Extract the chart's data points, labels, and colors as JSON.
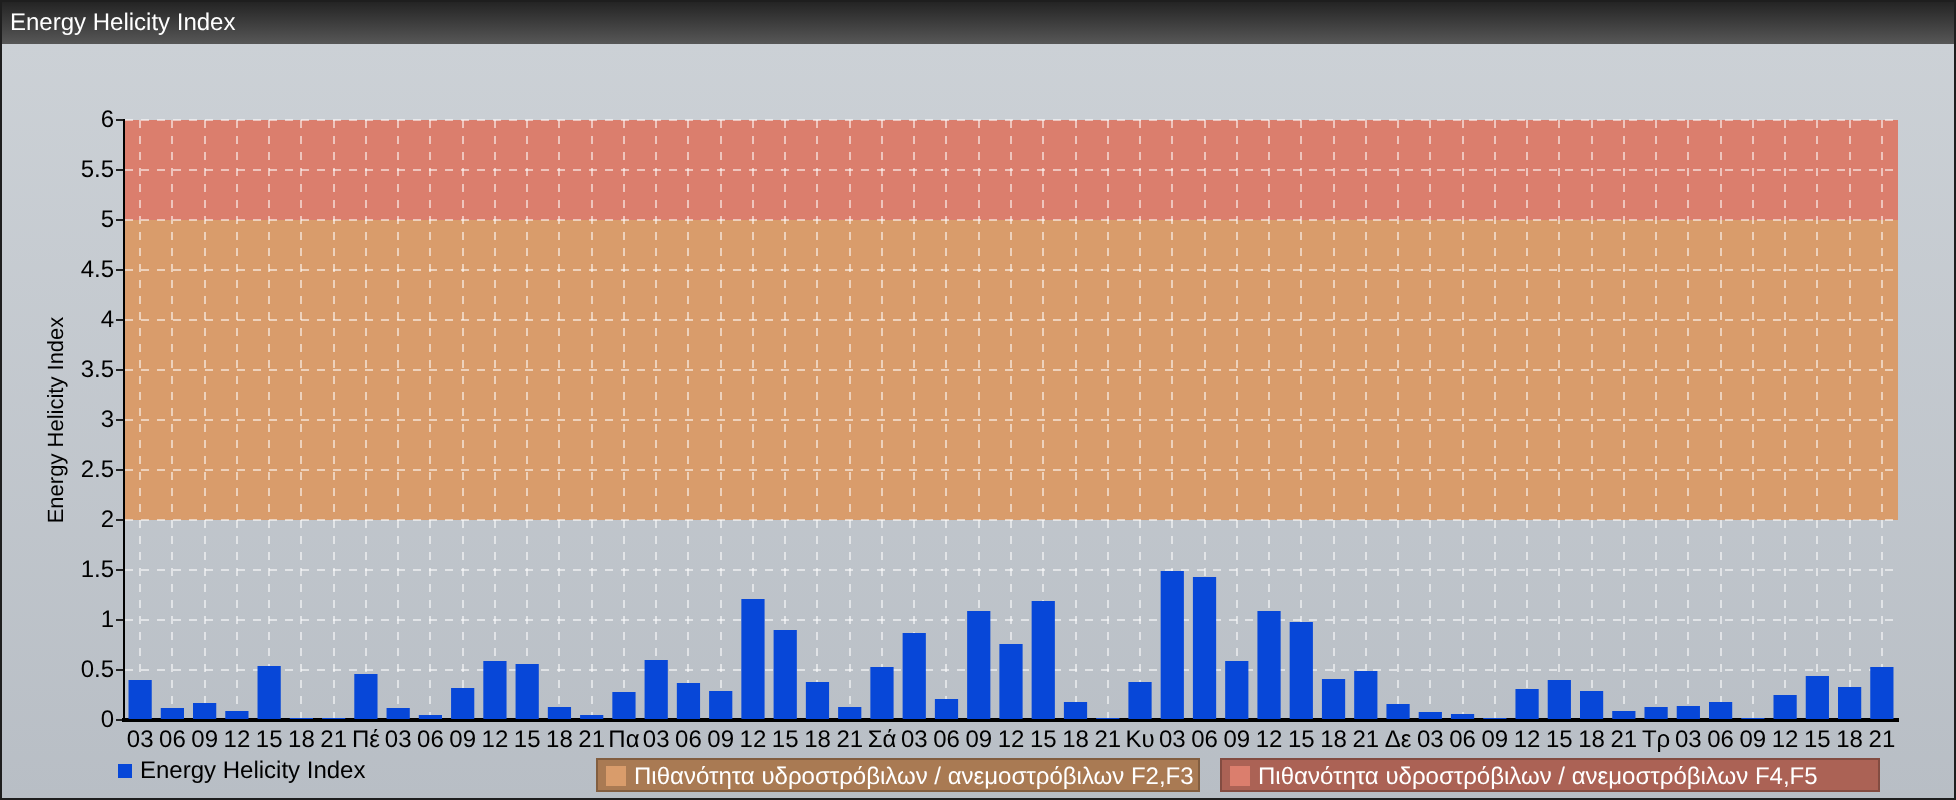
{
  "chart_data": {
    "type": "bar",
    "title": "Energy Helicity Index",
    "ylabel": "Energy Helicity Index",
    "categories": [
      "03",
      "06",
      "09",
      "12",
      "15",
      "18",
      "21",
      "Πέ",
      "03",
      "06",
      "09",
      "12",
      "15",
      "18",
      "21",
      "Πα",
      "03",
      "06",
      "09",
      "12",
      "15",
      "18",
      "21",
      "Σά",
      "03",
      "06",
      "09",
      "12",
      "15",
      "18",
      "21",
      "Κυ",
      "03",
      "06",
      "09",
      "12",
      "15",
      "18",
      "21",
      "Δε",
      "03",
      "06",
      "09",
      "12",
      "15",
      "18",
      "21",
      "Τρ",
      "03",
      "06",
      "09",
      "12",
      "15",
      "18",
      "21"
    ],
    "series": [
      {
        "name": "Energy Helicity Index",
        "color": "#0747d8",
        "values": [
          0.4,
          0.12,
          0.17,
          0.09,
          0.54,
          0.02,
          0.02,
          0.46,
          0.12,
          0.05,
          0.32,
          0.59,
          0.56,
          0.13,
          0.05,
          0.28,
          0.6,
          0.37,
          0.29,
          1.21,
          0.9,
          0.38,
          0.13,
          0.53,
          0.87,
          0.21,
          1.09,
          0.76,
          1.19,
          0.18,
          0.02,
          0.38,
          1.49,
          1.43,
          0.59,
          1.09,
          0.98,
          0.41,
          0.49,
          0.16,
          0.08,
          0.06,
          0.02,
          0.31,
          0.4,
          0.29,
          0.09,
          0.13,
          0.14,
          0.18,
          0.02,
          0.25,
          0.44,
          0.33,
          0.53
        ]
      }
    ],
    "ylim": [
      0,
      6
    ],
    "yticks": [
      0,
      0.5,
      1,
      1.5,
      2,
      2.5,
      3,
      3.5,
      4,
      4.5,
      5,
      5.5,
      6
    ],
    "grid": true,
    "legend": "bottom left",
    "bands": [
      {
        "axis": "y",
        "from": 2,
        "to": 5,
        "label": "Πιθανότητα υδροστρόβιλων / ανεμοστρόβιλων F2,F3",
        "color": "#d99c6b"
      },
      {
        "axis": "y",
        "from": 5,
        "to": 6,
        "label": "Πιθανότητα υδροστρόβιλων / ανεμοστρόβιλων F4,F5",
        "color": "#db7e6d"
      }
    ]
  }
}
